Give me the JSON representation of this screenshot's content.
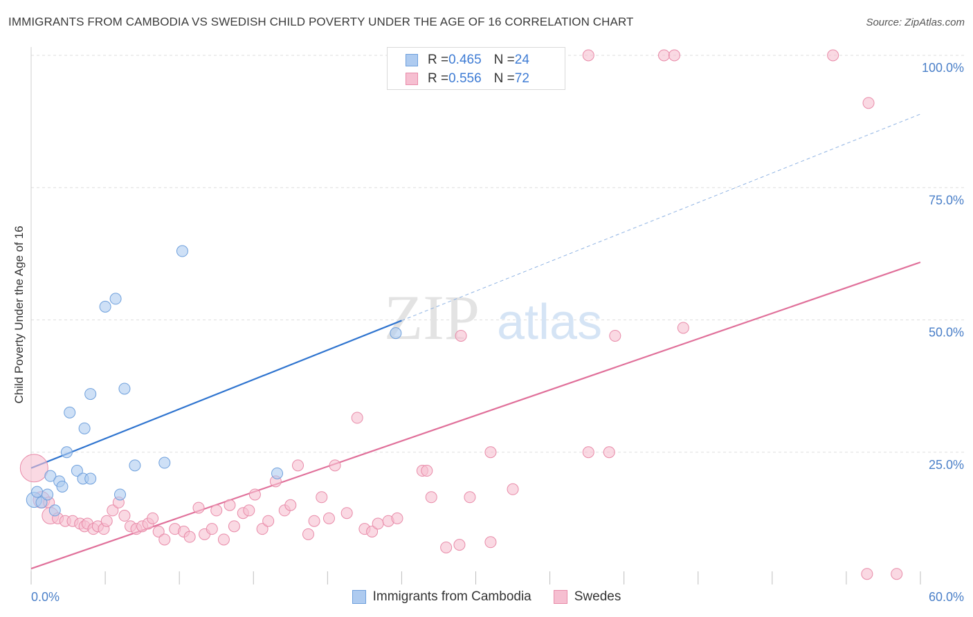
{
  "title": "IMMIGRANTS FROM CAMBODIA VS SWEDISH CHILD POVERTY UNDER THE AGE OF 16 CORRELATION CHART",
  "source": "Source: ZipAtlas.com",
  "watermark": {
    "zip": "ZIP",
    "atlas": "atlas"
  },
  "colors": {
    "blue_fill": "#aecbf0",
    "blue_stroke": "#6d9fdc",
    "blue_line": "#2f74cf",
    "pink_fill": "#f6bfd1",
    "pink_stroke": "#e88aa8",
    "pink_line": "#e0709a",
    "axis_text": "#4a7fc8",
    "grid": "#dddddd"
  },
  "legend_top": [
    {
      "series": "blue",
      "r_label": "R = ",
      "r_value": "0.465",
      "n_label": "N = ",
      "n_value": "24"
    },
    {
      "series": "pink",
      "r_label": "R = ",
      "r_value": "0.556",
      "n_label": "N = ",
      "n_value": "72"
    }
  ],
  "legend_bottom": [
    {
      "series": "blue",
      "label": "Immigrants from Cambodia"
    },
    {
      "series": "pink",
      "label": "Swedes"
    }
  ],
  "chart_data": {
    "type": "scatter",
    "title": "IMMIGRANTS FROM CAMBODIA VS SWEDISH CHILD POVERTY UNDER THE AGE OF 16 CORRELATION CHART",
    "xlabel": "",
    "ylabel": "Child Poverty Under the Age of 16",
    "xlim": [
      0,
      60
    ],
    "ylim": [
      0,
      100
    ],
    "x_tick_labels": [
      {
        "value": 0,
        "label": "0.0%"
      },
      {
        "value": 60,
        "label": "60.0%"
      }
    ],
    "y_tick_labels": [
      {
        "value": 25,
        "label": "25.0%"
      },
      {
        "value": 50,
        "label": "50.0%"
      },
      {
        "value": 75,
        "label": "75.0%"
      },
      {
        "value": 100,
        "label": "100.0%"
      }
    ],
    "grid": true,
    "legend_position": "top-center",
    "series": [
      {
        "name": "Immigrants from Cambodia",
        "color": "blue",
        "points": [
          [
            0.2,
            16.0
          ],
          [
            0.4,
            17.5
          ],
          [
            0.7,
            15.5
          ],
          [
            1.1,
            17.0
          ],
          [
            1.3,
            20.5
          ],
          [
            1.6,
            14.0
          ],
          [
            1.9,
            19.5
          ],
          [
            2.1,
            18.5
          ],
          [
            2.4,
            25.0
          ],
          [
            2.6,
            32.5
          ],
          [
            3.1,
            21.5
          ],
          [
            3.6,
            29.5
          ],
          [
            3.5,
            20.0
          ],
          [
            4.0,
            20.0
          ],
          [
            4.0,
            36.0
          ],
          [
            5.0,
            52.5
          ],
          [
            5.7,
            54.0
          ],
          [
            6.0,
            17.0
          ],
          [
            6.3,
            37.0
          ],
          [
            7.0,
            22.5
          ],
          [
            9.0,
            23.0
          ],
          [
            10.2,
            63.0
          ],
          [
            16.6,
            21.0
          ],
          [
            24.6,
            47.5
          ]
        ],
        "trend": {
          "x0": 0,
          "y0": 22.0,
          "x_solid_end": 25.0,
          "x_dashed_end": 60.0,
          "slope": 1.115
        }
      },
      {
        "name": "Swedes",
        "color": "pink",
        "points": [
          [
            0.2,
            22.0
          ],
          [
            0.7,
            16.0
          ],
          [
            1.2,
            15.5
          ],
          [
            1.3,
            13.0
          ],
          [
            1.8,
            12.5
          ],
          [
            2.3,
            12.0
          ],
          [
            2.8,
            12.0
          ],
          [
            3.3,
            11.5
          ],
          [
            3.6,
            11.0
          ],
          [
            3.8,
            11.5
          ],
          [
            4.2,
            10.5
          ],
          [
            4.5,
            11.0
          ],
          [
            4.9,
            10.5
          ],
          [
            5.1,
            12.0
          ],
          [
            5.5,
            14.0
          ],
          [
            5.9,
            15.5
          ],
          [
            6.3,
            13.0
          ],
          [
            6.7,
            11.0
          ],
          [
            7.1,
            10.5
          ],
          [
            7.5,
            11.0
          ],
          [
            7.9,
            11.5
          ],
          [
            8.2,
            12.5
          ],
          [
            8.6,
            10.0
          ],
          [
            9.0,
            8.5
          ],
          [
            9.7,
            10.5
          ],
          [
            10.3,
            10.0
          ],
          [
            10.7,
            9.0
          ],
          [
            11.3,
            14.5
          ],
          [
            11.7,
            9.5
          ],
          [
            12.2,
            10.5
          ],
          [
            12.5,
            14.0
          ],
          [
            13.0,
            8.5
          ],
          [
            13.4,
            15.0
          ],
          [
            13.7,
            11.0
          ],
          [
            14.3,
            13.5
          ],
          [
            14.7,
            14.0
          ],
          [
            15.1,
            17.0
          ],
          [
            15.6,
            10.5
          ],
          [
            16.0,
            12.0
          ],
          [
            16.5,
            19.5
          ],
          [
            17.1,
            14.0
          ],
          [
            17.5,
            15.0
          ],
          [
            18.0,
            22.5
          ],
          [
            18.7,
            9.5
          ],
          [
            19.1,
            12.0
          ],
          [
            19.6,
            16.5
          ],
          [
            20.1,
            12.5
          ],
          [
            20.5,
            22.5
          ],
          [
            21.3,
            13.5
          ],
          [
            22.0,
            31.5
          ],
          [
            22.5,
            10.5
          ],
          [
            23.0,
            10.0
          ],
          [
            23.4,
            11.5
          ],
          [
            24.1,
            12.0
          ],
          [
            24.7,
            12.5
          ],
          [
            26.4,
            21.5
          ],
          [
            26.7,
            21.5
          ],
          [
            27.0,
            16.5
          ],
          [
            28.0,
            7.0
          ],
          [
            28.9,
            7.5
          ],
          [
            29.0,
            47.0
          ],
          [
            29.6,
            16.5
          ],
          [
            31.0,
            8.0
          ],
          [
            31.0,
            25.0
          ],
          [
            32.5,
            18.0
          ],
          [
            37.6,
            25.0
          ],
          [
            39.4,
            47.0
          ],
          [
            39.0,
            25.0
          ],
          [
            44.0,
            48.5
          ],
          [
            56.5,
            91.0
          ],
          [
            56.4,
            2.0
          ],
          [
            58.4,
            2.0
          ]
        ],
        "top_edge_points": [
          [
            37.6,
            100.0
          ],
          [
            42.7,
            100.0
          ],
          [
            43.4,
            100.0
          ],
          [
            54.1,
            100.0
          ]
        ],
        "trend": {
          "x0": 0,
          "y0": 3.0,
          "x_end": 60.0,
          "slope": 0.965
        }
      }
    ]
  }
}
